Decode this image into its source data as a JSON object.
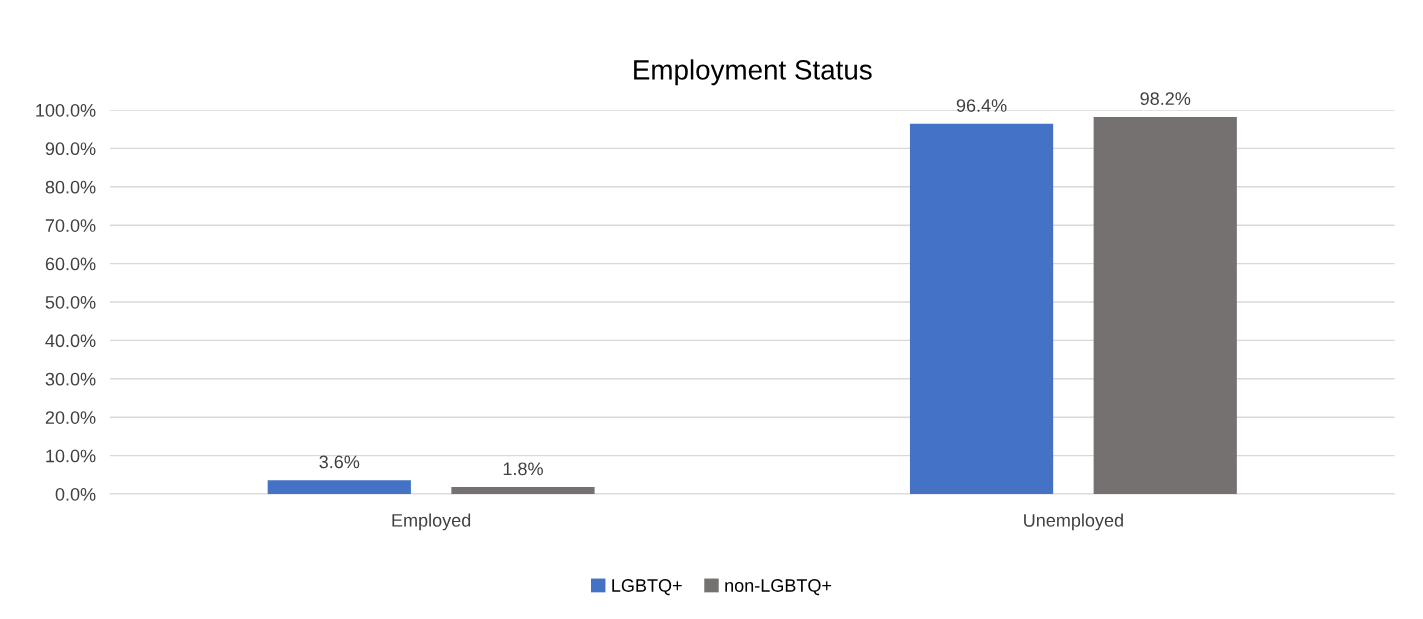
{
  "chart_data": {
    "type": "bar",
    "title": "Employment Status",
    "categories": [
      "Employed",
      "Unemployed"
    ],
    "series": [
      {
        "name": "LGBTQ+",
        "color": "#4472c4",
        "values": [
          3.6,
          96.4
        ],
        "value_labels": [
          "3.6%",
          "96.4%"
        ]
      },
      {
        "name": "non-LGBTQ+",
        "color": "#767171",
        "values": [
          1.8,
          98.2
        ],
        "value_labels": [
          "1.8%",
          "98.2%"
        ]
      }
    ],
    "ylim": [
      0,
      100
    ],
    "yticks": [
      {
        "value": 0,
        "label": "0.0%"
      },
      {
        "value": 10,
        "label": "10.0%"
      },
      {
        "value": 20,
        "label": "20.0%"
      },
      {
        "value": 30,
        "label": "30.0%"
      },
      {
        "value": 40,
        "label": "40.0%"
      },
      {
        "value": 50,
        "label": "50.0%"
      },
      {
        "value": 60,
        "label": "60.0%"
      },
      {
        "value": 70,
        "label": "70.0%"
      },
      {
        "value": 80,
        "label": "80.0%"
      },
      {
        "value": 90,
        "label": "90.0%"
      },
      {
        "value": 100,
        "label": "100.0%"
      }
    ],
    "grid": "y",
    "legend": "bottom"
  }
}
